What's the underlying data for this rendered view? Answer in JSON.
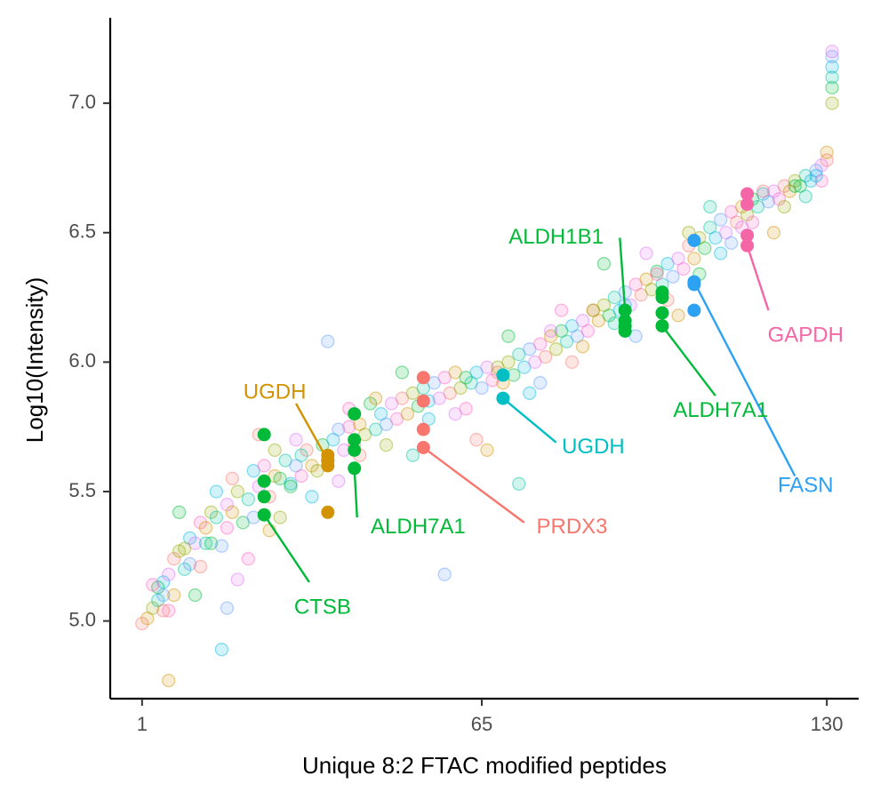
{
  "chart_data": {
    "type": "scatter",
    "xlabel": "Unique 8:2 FTAC modified peptides",
    "ylabel": "Log10(Intensity)",
    "xlim": [
      -5,
      136
    ],
    "ylim": [
      4.7,
      7.33
    ],
    "x_ticks": [
      {
        "value": 1,
        "label": "1"
      },
      {
        "value": 65,
        "label": "65"
      },
      {
        "value": 130,
        "label": "130"
      }
    ],
    "y_ticks": [
      {
        "value": 5.0,
        "label": "5.0"
      },
      {
        "value": 5.5,
        "label": "5.5"
      },
      {
        "value": 6.0,
        "label": "6.0"
      },
      {
        "value": 6.5,
        "label": "6.5"
      },
      {
        "value": 7.0,
        "label": "7.0"
      }
    ],
    "grid": false,
    "legend": "none",
    "background_palette": [
      "#F8766D",
      "#D39200",
      "#93AA00",
      "#00BA38",
      "#00C19F",
      "#00B9E3",
      "#619CFF",
      "#DB72FB",
      "#FF61C3"
    ],
    "background_points": [
      [
        1,
        4.99
      ],
      [
        2,
        5.01
      ],
      [
        3,
        5.05
      ],
      [
        4,
        5.13
      ],
      [
        4,
        5.08
      ],
      [
        5,
        5.15
      ],
      [
        5,
        5.1
      ],
      [
        6,
        5.18
      ],
      [
        6,
        5.04
      ],
      [
        7,
        5.24
      ],
      [
        7,
        5.1
      ],
      [
        8,
        5.27
      ],
      [
        8,
        5.42
      ],
      [
        9,
        5.2
      ],
      [
        10,
        5.32
      ],
      [
        10,
        5.22
      ],
      [
        11,
        5.3
      ],
      [
        12,
        5.38
      ],
      [
        12,
        5.21
      ],
      [
        13,
        5.36
      ],
      [
        14,
        5.42
      ],
      [
        14,
        5.3
      ],
      [
        15,
        5.4
      ],
      [
        15,
        5.5
      ],
      [
        16,
        5.29
      ],
      [
        17,
        5.45
      ],
      [
        17,
        5.36
      ],
      [
        18,
        5.55
      ],
      [
        18,
        5.42
      ],
      [
        19,
        5.5
      ],
      [
        20,
        5.38
      ],
      [
        21,
        5.47
      ],
      [
        22,
        5.58
      ],
      [
        22,
        5.4
      ],
      [
        23,
        5.52
      ],
      [
        24,
        5.6
      ],
      [
        25,
        5.48
      ],
      [
        26,
        5.56
      ],
      [
        26,
        5.66
      ],
      [
        27,
        5.55
      ],
      [
        28,
        5.62
      ],
      [
        29,
        5.53
      ],
      [
        30,
        5.6
      ],
      [
        30,
        5.7
      ],
      [
        31,
        5.56
      ],
      [
        32,
        5.66
      ],
      [
        33,
        5.6
      ],
      [
        34,
        5.58
      ],
      [
        35,
        5.68
      ],
      [
        36,
        5.62
      ],
      [
        37,
        5.7
      ],
      [
        38,
        5.74
      ],
      [
        39,
        5.66
      ],
      [
        40,
        5.75
      ],
      [
        41,
        5.68
      ],
      [
        42,
        5.76
      ],
      [
        43,
        5.72
      ],
      [
        44,
        5.84
      ],
      [
        45,
        5.74
      ],
      [
        46,
        5.8
      ],
      [
        47,
        5.76
      ],
      [
        48,
        5.84
      ],
      [
        49,
        5.78
      ],
      [
        50,
        5.86
      ],
      [
        51,
        5.8
      ],
      [
        52,
        5.88
      ],
      [
        53,
        5.83
      ],
      [
        54,
        5.9
      ],
      [
        55,
        5.85
      ],
      [
        56,
        5.92
      ],
      [
        57,
        5.86
      ],
      [
        58,
        5.94
      ],
      [
        59,
        5.88
      ],
      [
        60,
        5.96
      ],
      [
        61,
        5.9
      ],
      [
        62,
        5.94
      ],
      [
        63,
        5.92
      ],
      [
        64,
        5.96
      ],
      [
        65,
        5.9
      ],
      [
        66,
        5.98
      ],
      [
        67,
        5.93
      ],
      [
        68,
        5.96
      ],
      [
        69,
        5.92
      ],
      [
        70,
        6.0
      ],
      [
        71,
        5.95
      ],
      [
        72,
        6.03
      ],
      [
        73,
        5.98
      ],
      [
        74,
        6.05
      ],
      [
        75,
        6.0
      ],
      [
        76,
        6.07
      ],
      [
        77,
        6.02
      ],
      [
        78,
        6.1
      ],
      [
        79,
        6.05
      ],
      [
        80,
        6.12
      ],
      [
        81,
        6.08
      ],
      [
        82,
        6.14
      ],
      [
        83,
        6.1
      ],
      [
        84,
        6.16
      ],
      [
        85,
        6.12
      ],
      [
        86,
        6.2
      ],
      [
        87,
        6.16
      ],
      [
        88,
        6.22
      ],
      [
        89,
        6.18
      ],
      [
        90,
        6.25
      ],
      [
        91,
        6.2
      ],
      [
        92,
        6.27
      ],
      [
        93,
        6.22
      ],
      [
        94,
        6.3
      ],
      [
        95,
        6.26
      ],
      [
        96,
        6.32
      ],
      [
        97,
        6.28
      ],
      [
        98,
        6.35
      ],
      [
        99,
        6.3
      ],
      [
        100,
        6.38
      ],
      [
        101,
        6.33
      ],
      [
        102,
        6.4
      ],
      [
        103,
        6.36
      ],
      [
        104,
        6.45
      ],
      [
        105,
        6.4
      ],
      [
        106,
        6.48
      ],
      [
        107,
        6.44
      ],
      [
        108,
        6.52
      ],
      [
        109,
        6.48
      ],
      [
        110,
        6.55
      ],
      [
        111,
        6.5
      ],
      [
        112,
        6.58
      ],
      [
        113,
        6.54
      ],
      [
        114,
        6.6
      ],
      [
        115,
        6.57
      ],
      [
        116,
        6.63
      ],
      [
        117,
        6.6
      ],
      [
        118,
        6.65
      ],
      [
        119,
        6.62
      ],
      [
        120,
        6.66
      ],
      [
        121,
        6.63
      ],
      [
        122,
        6.68
      ],
      [
        123,
        6.66
      ],
      [
        124,
        6.7
      ],
      [
        125,
        6.68
      ],
      [
        126,
        6.72
      ],
      [
        127,
        6.7
      ],
      [
        128,
        6.74
      ],
      [
        129,
        6.76
      ],
      [
        129,
        6.7
      ],
      [
        130,
        6.78
      ],
      [
        130,
        6.81
      ],
      [
        131,
        7.0
      ],
      [
        131,
        7.06
      ],
      [
        131,
        7.1
      ],
      [
        131,
        7.14
      ],
      [
        131,
        7.18
      ],
      [
        131,
        7.2
      ],
      [
        3,
        5.14
      ],
      [
        5,
        5.04
      ],
      [
        6,
        4.77
      ],
      [
        9,
        5.28
      ],
      [
        11,
        5.1
      ],
      [
        13,
        5.3
      ],
      [
        16,
        4.89
      ],
      [
        17,
        5.05
      ],
      [
        19,
        5.16
      ],
      [
        21,
        5.24
      ],
      [
        23,
        5.72
      ],
      [
        25,
        5.35
      ],
      [
        27,
        5.4
      ],
      [
        29,
        5.52
      ],
      [
        31,
        5.64
      ],
      [
        33,
        5.48
      ],
      [
        36,
        6.08
      ],
      [
        38,
        5.54
      ],
      [
        40,
        5.82
      ],
      [
        42,
        5.64
      ],
      [
        45,
        5.86
      ],
      [
        47,
        5.68
      ],
      [
        50,
        5.96
      ],
      [
        52,
        5.64
      ],
      [
        55,
        5.78
      ],
      [
        58,
        5.18
      ],
      [
        60,
        5.8
      ],
      [
        62,
        5.82
      ],
      [
        64,
        5.7
      ],
      [
        66,
        5.66
      ],
      [
        68,
        5.98
      ],
      [
        70,
        6.1
      ],
      [
        72,
        5.53
      ],
      [
        74,
        5.88
      ],
      [
        76,
        5.92
      ],
      [
        78,
        6.12
      ],
      [
        80,
        6.2
      ],
      [
        82,
        6.0
      ],
      [
        84,
        6.06
      ],
      [
        86,
        6.2
      ],
      [
        88,
        6.38
      ],
      [
        90,
        6.15
      ],
      [
        92,
        6.22
      ],
      [
        94,
        6.1
      ],
      [
        96,
        6.42
      ],
      [
        98,
        6.34
      ],
      [
        100,
        6.24
      ],
      [
        102,
        6.18
      ],
      [
        104,
        6.5
      ],
      [
        106,
        6.34
      ],
      [
        108,
        6.6
      ],
      [
        110,
        6.42
      ],
      [
        112,
        6.46
      ],
      [
        114,
        6.52
      ],
      [
        116,
        6.54
      ],
      [
        118,
        6.66
      ],
      [
        120,
        6.5
      ],
      [
        122,
        6.6
      ],
      [
        124,
        6.68
      ],
      [
        126,
        6.64
      ],
      [
        128,
        6.72
      ]
    ],
    "highlighted_series": [
      {
        "color": "#00BA38",
        "x": 24,
        "y": [
          5.72,
          5.54,
          5.48,
          5.41
        ],
        "label": "CTSB",
        "label_anchor": [
          35,
          5.05
        ],
        "line_end": [
          32.5,
          5.15
        ],
        "line_start": [
          24,
          5.41
        ]
      },
      {
        "color": "#D39200",
        "x": 36,
        "y": [
          5.64,
          5.62,
          5.6,
          5.42
        ],
        "label": "UGDH",
        "label_anchor": [
          26,
          5.88
        ],
        "line_end": [
          30,
          5.84
        ],
        "line_start": [
          36,
          5.62
        ]
      },
      {
        "color": "#00BA38",
        "x": 41,
        "y": [
          5.8,
          5.7,
          5.66,
          5.59
        ],
        "label": "ALDH7A1",
        "label_anchor": [
          53,
          5.36
        ],
        "line_end": [
          41.5,
          5.4
        ],
        "line_start": [
          41,
          5.59
        ]
      },
      {
        "color": "#F8766D",
        "x": 54,
        "y": [
          5.94,
          5.85,
          5.74,
          5.67
        ],
        "label": "PRDX3",
        "label_anchor": [
          82,
          5.36
        ],
        "line_end": [
          73,
          5.38
        ],
        "line_start": [
          54,
          5.67
        ]
      },
      {
        "color": "#00BFC4",
        "x": 69,
        "y": [
          5.95,
          5.86
        ],
        "label": "UGDH",
        "label_anchor": [
          86,
          5.67
        ],
        "line_end": [
          79,
          5.69
        ],
        "line_start": [
          69,
          5.86
        ]
      },
      {
        "color": "#00BA38",
        "x": 92,
        "y": [
          6.2,
          6.16,
          6.14,
          6.12
        ],
        "label": "ALDH1B1",
        "label_anchor": [
          79,
          6.48
        ],
        "line_end": [
          91,
          6.48
        ],
        "line_start": [
          92,
          6.2
        ]
      },
      {
        "color": "#00BA38",
        "x": 99,
        "y": [
          6.27,
          6.25,
          6.19,
          6.14
        ],
        "label": "ALDH7A1",
        "label_anchor": [
          110,
          5.81
        ],
        "line_end": [
          109,
          5.87
        ],
        "line_start": [
          99,
          6.14
        ]
      },
      {
        "color": "#2DA1F2",
        "x": 105,
        "y": [
          6.47,
          6.31,
          6.3,
          6.2
        ],
        "label": "FASN",
        "label_anchor": [
          126,
          5.52
        ],
        "line_end": [
          124,
          5.56
        ],
        "line_start": [
          105,
          6.31
        ]
      },
      {
        "color": "#F566A6",
        "x": 115,
        "y": [
          6.65,
          6.61,
          6.49,
          6.45
        ],
        "label": "GAPDH",
        "label_anchor": [
          126,
          6.1
        ],
        "line_end": [
          119,
          6.2
        ],
        "line_start": [
          115,
          6.45
        ]
      }
    ]
  }
}
